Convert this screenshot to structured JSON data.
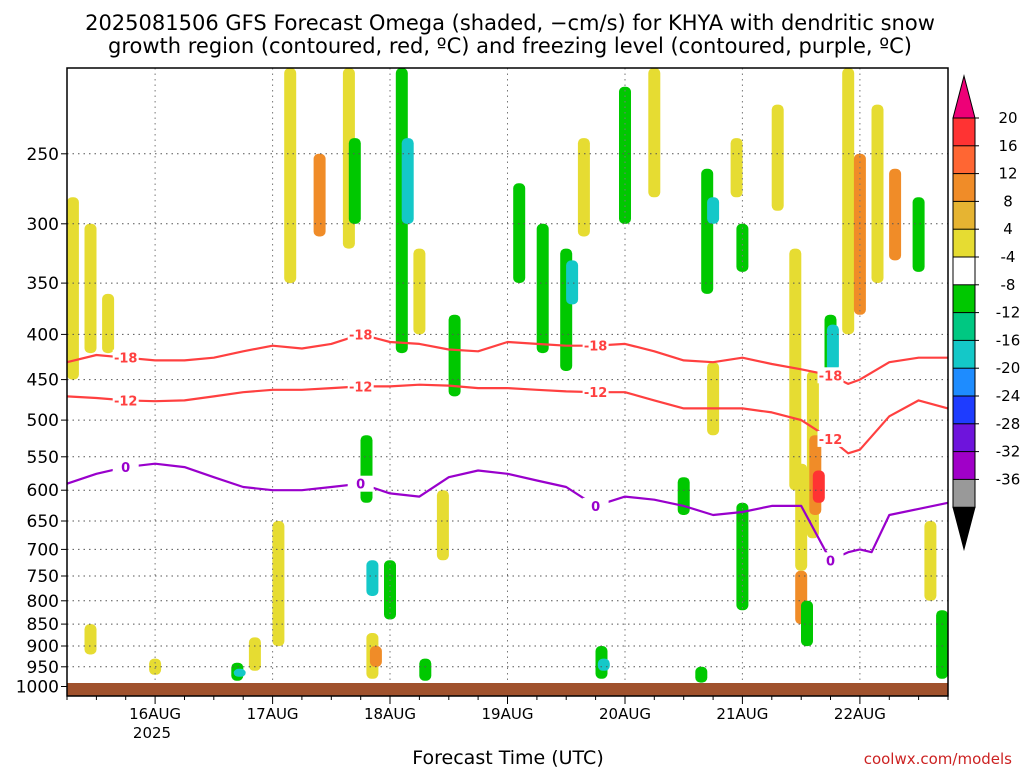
{
  "chart_data": {
    "type": "heatmap",
    "title_line1": "2025081506 GFS Forecast Omega (shaded, −cm/s) for KHYA with dendritic snow",
    "title_line2": "growth region (contoured, red, ºC) and freezing level (contoured, purple, ºC)",
    "xlabel": "Forecast Time (UTC)",
    "x_tick_labels": [
      "16AUG",
      "17AUG",
      "18AUG",
      "19AUG",
      "20AUG",
      "21AUG",
      "22AUG"
    ],
    "x_year_label": "2025",
    "x_start_day": 15.25,
    "x_end_day": 22.75,
    "y_scale": "pressure (hPa, log, inverted)",
    "y_ticks": [
      250,
      300,
      350,
      400,
      450,
      500,
      550,
      600,
      650,
      700,
      750,
      800,
      850,
      900,
      950,
      1000
    ],
    "ylim": [
      200,
      1025
    ],
    "grid": "dotted",
    "colorbar": {
      "labels": [
        "20",
        "16",
        "12",
        "8",
        "4",
        "-4",
        "-8",
        "-12",
        "-16",
        "-20",
        "-24",
        "-28",
        "-32",
        "-36"
      ],
      "colors": [
        "#ee0077",
        "#ff3333",
        "#ff6633",
        "#f08c28",
        "#e6b432",
        "#e6dc32",
        "#ffffff",
        "#00c800",
        "#00c882",
        "#14c8c8",
        "#1e8cff",
        "#1e3cff",
        "#6e14dc",
        "#a000c8",
        "#999999",
        "#000000"
      ]
    },
    "contour_labels": {
      "minus18": "-18",
      "minus12": "-12",
      "zero": "0"
    },
    "contour_colors": {
      "dgz": "#ff4040",
      "freezing": "#9900cc"
    },
    "series": [
      {
        "name": "-18",
        "x": [
          15.25,
          15.5,
          15.75,
          16.0,
          16.25,
          16.5,
          16.75,
          17.0,
          17.25,
          17.5,
          17.75,
          18.0,
          18.25,
          18.5,
          18.75,
          19.0,
          19.25,
          19.5,
          19.75,
          20.0,
          20.25,
          20.5,
          20.75,
          21.0,
          21.25,
          21.5,
          21.75,
          21.9,
          22.0,
          22.25,
          22.5,
          22.75
        ],
        "y": [
          430,
          422,
          425,
          428,
          428,
          425,
          418,
          412,
          415,
          410,
          400,
          408,
          410,
          416,
          418,
          408,
          410,
          412,
          412,
          410,
          418,
          428,
          430,
          425,
          432,
          438,
          445,
          455,
          450,
          430,
          425,
          425
        ]
      },
      {
        "name": "-12",
        "x": [
          15.25,
          15.5,
          15.75,
          16.0,
          16.25,
          16.5,
          16.75,
          17.0,
          17.25,
          17.5,
          17.75,
          18.0,
          18.25,
          18.5,
          18.75,
          19.0,
          19.25,
          19.5,
          19.75,
          20.0,
          20.25,
          20.5,
          20.75,
          21.0,
          21.25,
          21.5,
          21.75,
          21.9,
          22.0,
          22.25,
          22.5,
          22.75
        ],
        "y": [
          470,
          472,
          475,
          476,
          475,
          470,
          465,
          462,
          462,
          460,
          458,
          458,
          456,
          457,
          460,
          460,
          462,
          464,
          465,
          465,
          475,
          485,
          485,
          485,
          490,
          500,
          525,
          545,
          540,
          495,
          475,
          485
        ]
      },
      {
        "name": "0",
        "x": [
          15.25,
          15.5,
          15.75,
          16.0,
          16.25,
          16.5,
          16.75,
          17.0,
          17.25,
          17.5,
          17.75,
          18.0,
          18.25,
          18.5,
          18.75,
          19.0,
          19.25,
          19.5,
          19.75,
          20.0,
          20.25,
          20.5,
          20.75,
          21.0,
          21.25,
          21.5,
          21.75,
          21.9,
          22.0,
          22.1,
          22.25,
          22.5,
          22.75
        ],
        "y": [
          590,
          575,
          565,
          560,
          565,
          580,
          595,
          600,
          600,
          595,
          590,
          605,
          610,
          580,
          570,
          575,
          585,
          595,
          625,
          610,
          615,
          625,
          640,
          635,
          625,
          625,
          720,
          705,
          700,
          705,
          640,
          630,
          620
        ]
      }
    ],
    "shading_cells": [
      {
        "x": 15.3,
        "p0": 280,
        "p1": 450,
        "value": 6
      },
      {
        "x": 15.45,
        "p0": 300,
        "p1": 420,
        "value": 6
      },
      {
        "x": 15.6,
        "p0": 360,
        "p1": 420,
        "value": 6
      },
      {
        "x": 15.45,
        "p0": 850,
        "p1": 920,
        "value": 6
      },
      {
        "x": 16.0,
        "p0": 930,
        "p1": 970,
        "value": 6
      },
      {
        "x": 16.7,
        "p0": 940,
        "p1": 985,
        "value": -6
      },
      {
        "x": 16.72,
        "p0": 955,
        "p1": 975,
        "value": -14
      },
      {
        "x": 16.85,
        "p0": 880,
        "p1": 960,
        "value": 6
      },
      {
        "x": 17.05,
        "p0": 650,
        "p1": 900,
        "value": 6
      },
      {
        "x": 17.15,
        "p0": 200,
        "p1": 350,
        "value": 6
      },
      {
        "x": 17.4,
        "p0": 250,
        "p1": 310,
        "value": 10
      },
      {
        "x": 17.65,
        "p0": 200,
        "p1": 320,
        "value": 6
      },
      {
        "x": 17.7,
        "p0": 240,
        "p1": 300,
        "value": -6
      },
      {
        "x": 17.8,
        "p0": 520,
        "p1": 620,
        "value": -6
      },
      {
        "x": 17.85,
        "p0": 720,
        "p1": 790,
        "value": -14
      },
      {
        "x": 17.85,
        "p0": 870,
        "p1": 980,
        "value": 6
      },
      {
        "x": 17.88,
        "p0": 900,
        "p1": 950,
        "value": 10
      },
      {
        "x": 18.0,
        "p0": 720,
        "p1": 840,
        "value": -6
      },
      {
        "x": 18.1,
        "p0": 200,
        "p1": 420,
        "value": -6
      },
      {
        "x": 18.15,
        "p0": 240,
        "p1": 300,
        "value": -14
      },
      {
        "x": 18.25,
        "p0": 320,
        "p1": 400,
        "value": 6
      },
      {
        "x": 18.3,
        "p0": 930,
        "p1": 985,
        "value": -6
      },
      {
        "x": 18.55,
        "p0": 380,
        "p1": 470,
        "value": -6
      },
      {
        "x": 18.45,
        "p0": 600,
        "p1": 720,
        "value": 6
      },
      {
        "x": 19.1,
        "p0": 270,
        "p1": 350,
        "value": -6
      },
      {
        "x": 19.3,
        "p0": 300,
        "p1": 420,
        "value": -6
      },
      {
        "x": 19.5,
        "p0": 320,
        "p1": 440,
        "value": -6
      },
      {
        "x": 19.55,
        "p0": 330,
        "p1": 370,
        "value": -14
      },
      {
        "x": 19.65,
        "p0": 240,
        "p1": 310,
        "value": 6
      },
      {
        "x": 19.8,
        "p0": 900,
        "p1": 980,
        "value": -6
      },
      {
        "x": 19.82,
        "p0": 930,
        "p1": 960,
        "value": -14
      },
      {
        "x": 20.0,
        "p0": 210,
        "p1": 300,
        "value": -6
      },
      {
        "x": 20.25,
        "p0": 200,
        "p1": 280,
        "value": 6
      },
      {
        "x": 20.5,
        "p0": 580,
        "p1": 640,
        "value": -6
      },
      {
        "x": 20.65,
        "p0": 950,
        "p1": 990,
        "value": -6
      },
      {
        "x": 20.7,
        "p0": 260,
        "p1": 360,
        "value": -6
      },
      {
        "x": 20.75,
        "p0": 280,
        "p1": 300,
        "value": -14
      },
      {
        "x": 20.75,
        "p0": 430,
        "p1": 520,
        "value": 6
      },
      {
        "x": 20.95,
        "p0": 240,
        "p1": 280,
        "value": 6
      },
      {
        "x": 21.0,
        "p0": 620,
        "p1": 820,
        "value": -6
      },
      {
        "x": 21.0,
        "p0": 300,
        "p1": 340,
        "value": -6
      },
      {
        "x": 21.3,
        "p0": 220,
        "p1": 290,
        "value": 6
      },
      {
        "x": 21.45,
        "p0": 320,
        "p1": 600,
        "value": 6
      },
      {
        "x": 21.5,
        "p0": 560,
        "p1": 740,
        "value": 6
      },
      {
        "x": 21.5,
        "p0": 740,
        "p1": 850,
        "value": 10
      },
      {
        "x": 21.55,
        "p0": 800,
        "p1": 900,
        "value": -6
      },
      {
        "x": 21.6,
        "p0": 440,
        "p1": 680,
        "value": 6
      },
      {
        "x": 21.62,
        "p0": 520,
        "p1": 640,
        "value": 10
      },
      {
        "x": 21.65,
        "p0": 570,
        "p1": 620,
        "value": 18
      },
      {
        "x": 21.75,
        "p0": 380,
        "p1": 450,
        "value": -6
      },
      {
        "x": 21.77,
        "p0": 390,
        "p1": 440,
        "value": -14
      },
      {
        "x": 21.9,
        "p0": 200,
        "p1": 400,
        "value": 6
      },
      {
        "x": 22.0,
        "p0": 250,
        "p1": 380,
        "value": 10
      },
      {
        "x": 22.15,
        "p0": 220,
        "p1": 350,
        "value": 6
      },
      {
        "x": 22.3,
        "p0": 260,
        "p1": 330,
        "value": 10
      },
      {
        "x": 22.5,
        "p0": 280,
        "p1": 340,
        "value": -6
      },
      {
        "x": 22.6,
        "p0": 650,
        "p1": 800,
        "value": 6
      },
      {
        "x": 22.7,
        "p0": 820,
        "p1": 980,
        "value": -6
      }
    ],
    "source_label": "coolwx.com/models"
  }
}
